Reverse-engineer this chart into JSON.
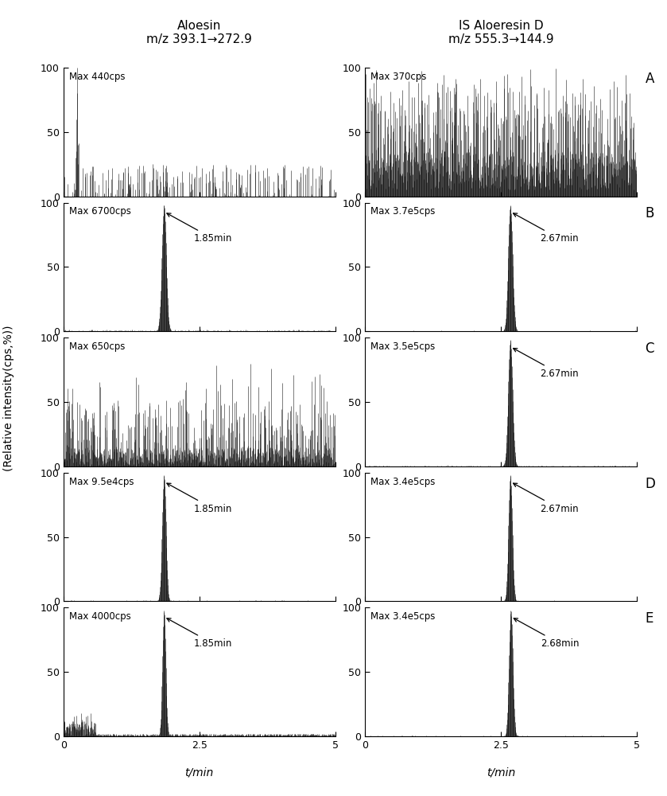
{
  "title_left": "Aloesin\nm/z 393.1→272.9",
  "title_right": "IS Aloeresin D\nm/z 555.3→144.9",
  "panel_labels": [
    "A",
    "B",
    "C",
    "D",
    "E"
  ],
  "left_max_labels": [
    "Max 440cps",
    "Max 6700cps",
    "Max 650cps",
    "Max 9.5e4cps",
    "Max 4000cps"
  ],
  "right_max_labels": [
    "Max 370cps",
    "Max 3.7e5cps",
    "Max 3.5e5cps",
    "Max 3.4e5cps",
    "Max 3.4e5cps"
  ],
  "left_annotations": [
    null,
    "1.85min",
    null,
    "1.85min",
    "1.85min"
  ],
  "right_annotations": [
    null,
    "2.67min",
    "2.67min",
    "2.67min",
    "2.68min"
  ],
  "left_peak_positions": [
    null,
    1.85,
    null,
    1.85,
    1.85
  ],
  "right_peak_positions": [
    null,
    2.67,
    2.67,
    2.67,
    2.68
  ],
  "ylabel": "(Relative intensity(cps,%))",
  "xlabel": "t/min",
  "xlim": [
    0,
    5
  ],
  "ylim": [
    0,
    100
  ],
  "yticks": [
    0,
    50,
    100
  ],
  "xticks": [
    0,
    2.5,
    5
  ],
  "background_color": "#ffffff",
  "line_color": "#000000"
}
